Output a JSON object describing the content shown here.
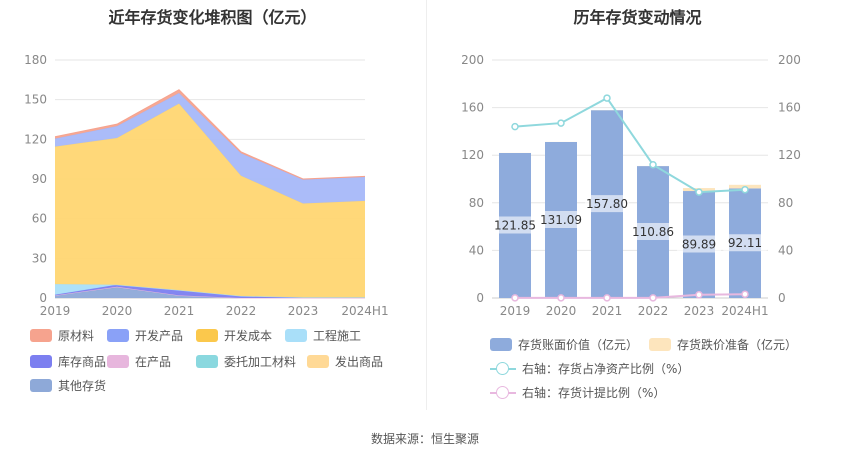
{
  "left_chart": {
    "title": "近年存货变化堆积图（亿元）",
    "legend": [
      {
        "label": "原材料",
        "color": "#f6a38e"
      },
      {
        "label": "开发产品",
        "color": "#8aa1f7"
      },
      {
        "label": "开发成本",
        "color": "#fbc84c"
      },
      {
        "label": "工程施工",
        "color": "#a9dff9"
      },
      {
        "label": "库存商品",
        "color": "#7c7ff0"
      },
      {
        "label": "在产品",
        "color": "#e7b6dd"
      },
      {
        "label": "委托加工材料",
        "color": "#8ad8df"
      },
      {
        "label": "发出商品",
        "color": "#ffd996"
      },
      {
        "label": "其他存货",
        "color": "#8ea9d8"
      }
    ]
  },
  "right_chart": {
    "title": "历年存货变动情况",
    "legend": [
      {
        "label": "存货账面价值（亿元）",
        "color": "#8eabdc"
      },
      {
        "label": "存货跌价准备（亿元）",
        "color": "#fde5bd"
      },
      {
        "label": "右轴：存货占净资产比例（%）",
        "color": "#8fd8dd"
      },
      {
        "label": "右轴：存货计提比例（%）",
        "color": "#e8b8df"
      }
    ]
  },
  "chart_data": [
    {
      "type": "area",
      "title": "近年存货变化堆积图（亿元）",
      "categories": [
        "2019",
        "2020",
        "2021",
        "2022",
        "2023",
        "2024H1"
      ],
      "ylim": [
        0,
        180
      ],
      "yticks": [
        0,
        30,
        60,
        90,
        120,
        150,
        180
      ],
      "series": [
        {
          "name": "其他存货",
          "color": "#8ea9d8",
          "values": [
            2,
            8,
            2,
            0,
            0,
            0
          ]
        },
        {
          "name": "委托加工材料",
          "color": "#8ad8df",
          "values": [
            0,
            0,
            0,
            0,
            0,
            0
          ]
        },
        {
          "name": "在产品",
          "color": "#e7b6dd",
          "values": [
            0,
            0.5,
            0,
            0,
            0,
            0
          ]
        },
        {
          "name": "库存商品",
          "color": "#7c7ff0",
          "values": [
            0.5,
            1.5,
            4,
            1.5,
            0.5,
            0.5
          ]
        },
        {
          "name": "工程施工",
          "color": "#a9dff9",
          "values": [
            8,
            0,
            0,
            0,
            0,
            0
          ]
        },
        {
          "name": "开发成本",
          "color": "#ffd672",
          "values": [
            104,
            111,
            141,
            91,
            71,
            73
          ]
        },
        {
          "name": "开发产品",
          "color": "#a7b8f9",
          "values": [
            6,
            9,
            8,
            17,
            18,
            18
          ]
        },
        {
          "name": "原材料",
          "color": "#f6a38e",
          "values": [
            1.5,
            1.5,
            2.5,
            1,
            0.5,
            0.5
          ]
        }
      ]
    },
    {
      "type": "bar",
      "title": "历年存货变动情况",
      "categories": [
        "2019",
        "2020",
        "2021",
        "2022",
        "2023",
        "2024H1"
      ],
      "ylim": [
        0,
        200
      ],
      "yticks": [
        0,
        40,
        80,
        120,
        160,
        200
      ],
      "y2lim": [
        0,
        200
      ],
      "y2ticks": [
        0,
        40,
        80,
        120,
        160,
        200
      ],
      "series": [
        {
          "name": "存货账面价值（亿元）",
          "type": "bar",
          "color": "#8eabdc",
          "values": [
            121.85,
            131.09,
            157.8,
            110.86,
            89.89,
            92.11
          ],
          "labels": [
            "121.85",
            "131.09",
            "157.80",
            "110.86",
            "89.89",
            "92.11"
          ]
        },
        {
          "name": "存货跌价准备（亿元）",
          "type": "bar",
          "color": "#fde5bd",
          "values": [
            0.1,
            0.1,
            0.1,
            0.1,
            2.5,
            3
          ]
        },
        {
          "name": "右轴：存货占净资产比例（%）",
          "type": "line",
          "color": "#8fd8dd",
          "values": [
            144,
            147,
            168,
            112,
            89,
            91
          ]
        },
        {
          "name": "右轴：存货计提比例（%）",
          "type": "line",
          "color": "#e8b8df",
          "values": [
            0.1,
            0.1,
            0.1,
            0.1,
            2.7,
            3.2
          ]
        }
      ]
    }
  ],
  "footer": {
    "source": "数据来源：恒生聚源"
  }
}
